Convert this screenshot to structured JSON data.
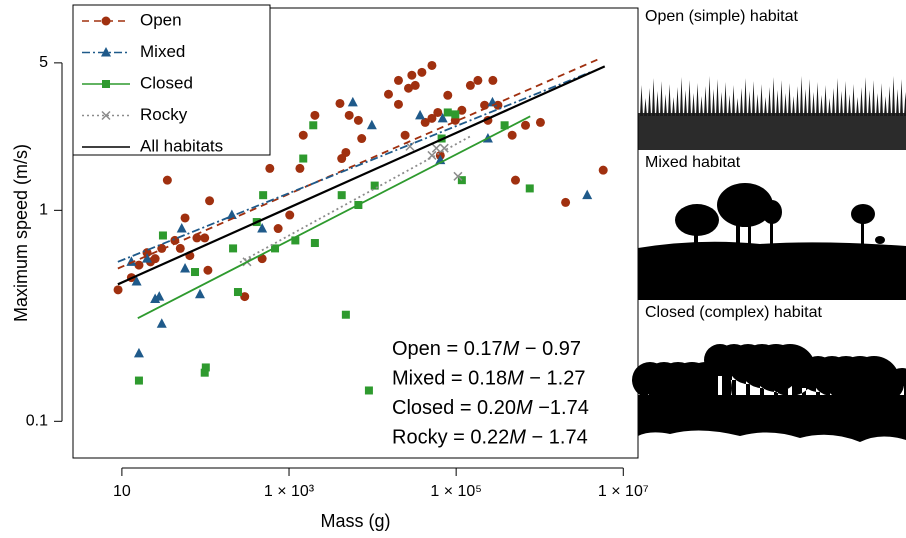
{
  "chart_data": {
    "type": "scatter",
    "xlabel": "Mass (g)",
    "ylabel": "Maximum speed (m/s)",
    "xscale": "log",
    "yscale": "log",
    "xlim": [
      2.6,
      15000000
    ],
    "ylim": [
      0.067,
      9.1
    ],
    "xticks": [
      10,
      {
        "value": 1000,
        "label": "1 × 10³"
      },
      {
        "value": 100000,
        "label": "1 × 10⁵"
      },
      {
        "value": 10000000,
        "label": "1 × 10⁷"
      }
    ],
    "yticks": [
      0.1,
      1,
      5
    ],
    "legend": "upper left",
    "series": [
      {
        "name": "Open",
        "color": "#a0300f",
        "marker": "circle",
        "linestyle": "dashed",
        "x": [
          9,
          13,
          16,
          20,
          22,
          25,
          30,
          35,
          43,
          50,
          57,
          65,
          79,
          98,
          112,
          107,
          295,
          477,
          589,
          741,
          1020,
          1350,
          1480,
          2040,
          4070,
          4270,
          4790,
          5250,
          6760,
          7410,
          15500,
          20400,
          20400,
          24500,
          26900,
          29500,
          32400,
          38900,
          42600,
          51300,
          51300,
          60300,
          64600,
          79400,
          97700,
          117000,
          148000,
          182000,
          219000,
          240000,
          275000,
          316000,
          468000,
          513000,
          676000,
          1020000,
          2040000,
          5750000
        ],
        "values": [
          0.42,
          0.48,
          0.55,
          0.63,
          0.57,
          0.59,
          0.66,
          1.39,
          0.72,
          0.66,
          0.92,
          0.61,
          0.74,
          0.74,
          1.11,
          0.52,
          0.39,
          0.59,
          1.58,
          0.82,
          0.95,
          1.58,
          2.27,
          2.82,
          3.21,
          1.76,
          1.88,
          2.82,
          2.67,
          2.19,
          3.55,
          3.18,
          4.13,
          2.27,
          3.79,
          4.37,
          3.91,
          4.51,
          2.61,
          4.86,
          2.73,
          2.91,
          1.82,
          3.51,
          2.67,
          2.98,
          3.91,
          4.13,
          3.15,
          2.67,
          4.13,
          3.15,
          2.27,
          1.39,
          2.53,
          2.61,
          1.09,
          1.55
        ],
        "fit_x": [
          8.95,
          5300000
        ],
        "fit_values": [
          0.53,
          5.25
        ]
      },
      {
        "name": "Mixed",
        "color": "#1f5a8a",
        "marker": "triangle",
        "linestyle": "dashdot",
        "x": [
          13,
          15,
          16,
          20,
          25,
          28,
          30,
          52,
          57,
          86,
          207,
          477,
          5800,
          9800,
          37000,
          69000,
          64600,
          240000,
          272000,
          3700000
        ],
        "values": [
          0.57,
          0.46,
          0.21,
          0.59,
          0.38,
          0.39,
          0.29,
          0.82,
          0.53,
          0.4,
          0.95,
          0.82,
          3.25,
          2.53,
          2.82,
          2.73,
          1.73,
          2.19,
          3.25,
          1.18
        ],
        "fit_x": [
          8.95,
          4000000
        ],
        "fit_values": [
          0.57,
          4.51
        ]
      },
      {
        "name": "Closed",
        "color": "#2e9a2e",
        "marker": "square",
        "linestyle": "solid",
        "x": [
          16,
          31,
          75,
          98,
          101,
          214,
          245,
          411,
          490,
          680,
          1190,
          1480,
          1950,
          2040,
          4270,
          4790,
          6760,
          9040,
          10600,
          67000,
          79400,
          97700,
          117000,
          380000,
          760000
        ],
        "values": [
          0.156,
          0.76,
          0.51,
          0.17,
          0.18,
          0.66,
          0.41,
          0.88,
          1.18,
          0.66,
          0.72,
          1.76,
          2.53,
          0.7,
          1.18,
          0.32,
          1.06,
          0.14,
          1.31,
          2.19,
          2.91,
          2.85,
          1.39,
          2.53,
          1.27
        ],
        "fit_x": [
          15.5,
          770000
        ],
        "fit_values": [
          0.308,
          2.79
        ]
      },
      {
        "name": "Rocky",
        "color": "#8c8c8c",
        "marker": "x",
        "linestyle": "dotted",
        "x": [
          314,
          28000,
          51300,
          58000,
          72000,
          105000
        ],
        "values": [
          0.57,
          2.01,
          1.82,
          1.97,
          1.97,
          1.45
        ],
        "fit_x": [
          259,
          147000
        ],
        "fit_values": [
          0.567,
          2.24
        ]
      }
    ],
    "overall_fit": {
      "name": "All habitats",
      "color": "#000000",
      "x": [
        8.95,
        6000000
      ],
      "values": [
        0.446,
        4.81
      ]
    },
    "annotations": [
      [
        "Open = 0.17",
        "M",
        " − 0.97"
      ],
      [
        "Mixed = 0.18",
        "M",
        " − 1.27"
      ],
      [
        "Closed = 0.20",
        "M",
        " −1.74"
      ],
      [
        "Rocky = 0.22",
        "M",
        " − 1.74"
      ]
    ]
  },
  "panels": [
    "Open (simple) habitat",
    "Mixed habitat",
    "Closed (complex) habitat"
  ]
}
